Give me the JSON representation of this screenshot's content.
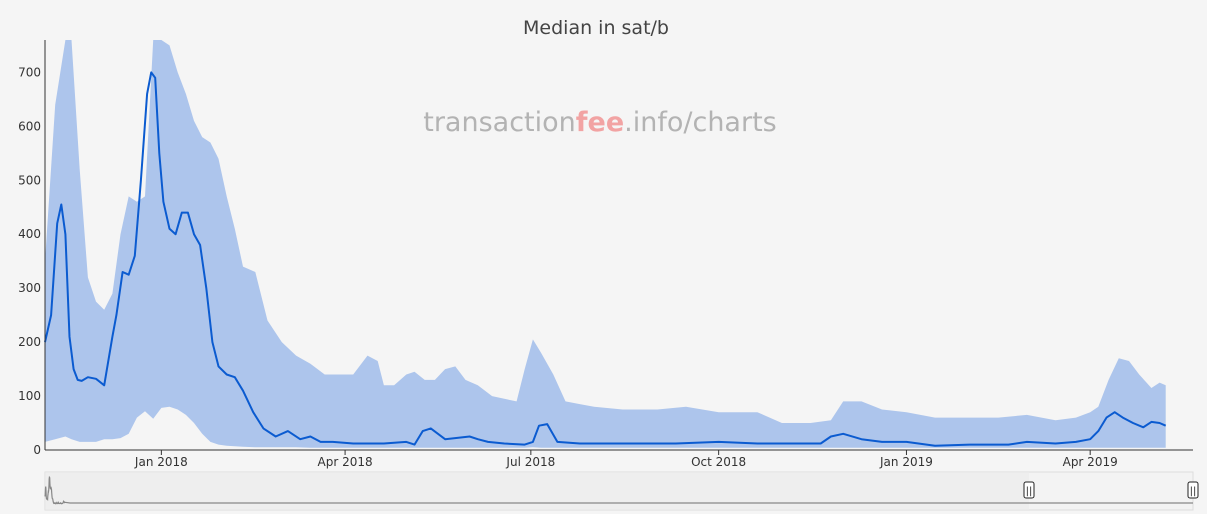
{
  "chart_data": {
    "type": "area",
    "title": "Median in sat/b",
    "watermark": {
      "pre": "transaction",
      "mid": "fee",
      "post": ".info/charts"
    },
    "xlabel": "",
    "ylabel": "",
    "ylim": [
      0,
      760
    ],
    "y_ticks": [
      0,
      100,
      200,
      300,
      400,
      500,
      600,
      700
    ],
    "x_ticks": [
      {
        "label": "Jan 2018",
        "date": "2018-01-01"
      },
      {
        "label": "Apr 2018",
        "date": "2018-04-01"
      },
      {
        "label": "Jul 2018",
        "date": "2018-07-01"
      },
      {
        "label": "Oct 2018",
        "date": "2018-10-01"
      },
      {
        "label": "Jan 2019",
        "date": "2019-01-01"
      },
      {
        "label": "Apr 2019",
        "date": "2019-04-01"
      }
    ],
    "xlim": [
      "2017-11-05",
      "2019-05-15"
    ],
    "grid": false,
    "colors": {
      "median": "#0b5bd0",
      "band": "#adc5ec",
      "navigator": "#888888"
    },
    "series": [
      {
        "kind": "band",
        "x": [
          "2017-11-05",
          "2017-11-10",
          "2017-11-15",
          "2017-11-18",
          "2017-11-22",
          "2017-11-26",
          "2017-11-30",
          "2017-12-04",
          "2017-12-08",
          "2017-12-12",
          "2017-12-16",
          "2017-12-20",
          "2017-12-24",
          "2017-12-28",
          "2018-01-01",
          "2018-01-05",
          "2018-01-09",
          "2018-01-13",
          "2018-01-17",
          "2018-01-21",
          "2018-01-25",
          "2018-01-29",
          "2018-02-02",
          "2018-02-06",
          "2018-02-10",
          "2018-02-16",
          "2018-02-22",
          "2018-03-01",
          "2018-03-08",
          "2018-03-15",
          "2018-03-22",
          "2018-03-29",
          "2018-04-05",
          "2018-04-12",
          "2018-04-17",
          "2018-04-20",
          "2018-04-25",
          "2018-05-01",
          "2018-05-05",
          "2018-05-10",
          "2018-05-15",
          "2018-05-20",
          "2018-05-25",
          "2018-05-30",
          "2018-06-05",
          "2018-06-12",
          "2018-06-18",
          "2018-06-24",
          "2018-06-28",
          "2018-07-02",
          "2018-07-06",
          "2018-07-12",
          "2018-07-18",
          "2018-07-25",
          "2018-08-01",
          "2018-08-15",
          "2018-09-01",
          "2018-09-15",
          "2018-10-01",
          "2018-10-20",
          "2018-11-01",
          "2018-11-15",
          "2018-11-25",
          "2018-12-01",
          "2018-12-10",
          "2018-12-20",
          "2019-01-01",
          "2019-01-15",
          "2019-02-01",
          "2019-02-15",
          "2019-03-01",
          "2019-03-15",
          "2019-03-25",
          "2019-04-01",
          "2019-04-05",
          "2019-04-10",
          "2019-04-15",
          "2019-04-20",
          "2019-04-25",
          "2019-05-01",
          "2019-05-05",
          "2019-05-08"
        ],
        "high": [
          350,
          640,
          760,
          760,
          520,
          320,
          275,
          260,
          290,
          400,
          470,
          460,
          470,
          760,
          760,
          750,
          700,
          660,
          610,
          580,
          570,
          540,
          470,
          410,
          340,
          330,
          240,
          200,
          175,
          160,
          140,
          140,
          140,
          175,
          165,
          120,
          120,
          140,
          145,
          130,
          130,
          150,
          155,
          130,
          120,
          100,
          95,
          90,
          150,
          205,
          180,
          140,
          90,
          85,
          80,
          75,
          75,
          80,
          70,
          70,
          50,
          50,
          55,
          90,
          90,
          75,
          70,
          60,
          60,
          60,
          65,
          55,
          60,
          70,
          80,
          130,
          170,
          165,
          140,
          115,
          125,
          120
        ],
        "low": [
          15,
          20,
          25,
          20,
          15,
          15,
          15,
          20,
          20,
          22,
          30,
          60,
          72,
          58,
          78,
          80,
          75,
          65,
          50,
          30,
          15,
          10,
          8,
          7,
          6,
          5,
          5,
          5,
          5,
          4,
          4,
          4,
          4,
          4,
          4,
          4,
          4,
          4,
          4,
          4,
          4,
          4,
          4,
          4,
          4,
          4,
          4,
          4,
          4,
          5,
          4,
          4,
          4,
          4,
          4,
          4,
          4,
          4,
          4,
          4,
          4,
          4,
          4,
          4,
          4,
          4,
          4,
          4,
          4,
          4,
          4,
          4,
          4,
          4,
          4,
          4,
          4,
          4,
          4,
          4,
          4,
          4
        ]
      },
      {
        "kind": "median",
        "x": [
          "2017-11-05",
          "2017-11-08",
          "2017-11-11",
          "2017-11-13",
          "2017-11-15",
          "2017-11-17",
          "2017-11-19",
          "2017-11-21",
          "2017-11-23",
          "2017-11-26",
          "2017-11-30",
          "2017-12-04",
          "2017-12-08",
          "2017-12-10",
          "2017-12-13",
          "2017-12-16",
          "2017-12-19",
          "2017-12-22",
          "2017-12-25",
          "2017-12-27",
          "2017-12-29",
          "2017-12-31",
          "2018-01-02",
          "2018-01-05",
          "2018-01-08",
          "2018-01-11",
          "2018-01-14",
          "2018-01-17",
          "2018-01-20",
          "2018-01-23",
          "2018-01-26",
          "2018-01-29",
          "2018-02-02",
          "2018-02-06",
          "2018-02-10",
          "2018-02-15",
          "2018-02-20",
          "2018-02-26",
          "2018-03-04",
          "2018-03-10",
          "2018-03-15",
          "2018-03-20",
          "2018-03-26",
          "2018-04-05",
          "2018-04-20",
          "2018-05-01",
          "2018-05-05",
          "2018-05-09",
          "2018-05-13",
          "2018-05-20",
          "2018-06-01",
          "2018-06-05",
          "2018-06-10",
          "2018-06-18",
          "2018-06-28",
          "2018-07-02",
          "2018-07-05",
          "2018-07-09",
          "2018-07-14",
          "2018-07-25",
          "2018-08-15",
          "2018-09-10",
          "2018-10-01",
          "2018-10-20",
          "2018-11-05",
          "2018-11-20",
          "2018-11-25",
          "2018-12-01",
          "2018-12-10",
          "2018-12-20",
          "2019-01-01",
          "2019-01-15",
          "2019-02-01",
          "2019-02-20",
          "2019-03-01",
          "2019-03-15",
          "2019-03-25",
          "2019-04-01",
          "2019-04-05",
          "2019-04-09",
          "2019-04-13",
          "2019-04-17",
          "2019-04-22",
          "2019-04-27",
          "2019-05-01",
          "2019-05-05",
          "2019-05-08"
        ],
        "values": [
          200,
          250,
          420,
          455,
          400,
          210,
          150,
          130,
          128,
          135,
          132,
          120,
          210,
          250,
          330,
          325,
          360,
          500,
          660,
          700,
          690,
          550,
          460,
          410,
          400,
          440,
          440,
          400,
          380,
          300,
          200,
          155,
          140,
          135,
          110,
          70,
          40,
          25,
          35,
          20,
          25,
          15,
          15,
          12,
          12,
          15,
          10,
          35,
          40,
          20,
          25,
          20,
          15,
          12,
          10,
          15,
          45,
          48,
          15,
          12,
          12,
          12,
          15,
          12,
          12,
          12,
          25,
          30,
          20,
          15,
          15,
          8,
          10,
          10,
          15,
          12,
          15,
          20,
          35,
          60,
          70,
          60,
          50,
          42,
          52,
          50,
          45
        ]
      }
    ]
  },
  "navigator": {
    "left_handle": "||",
    "right_handle": "||"
  }
}
